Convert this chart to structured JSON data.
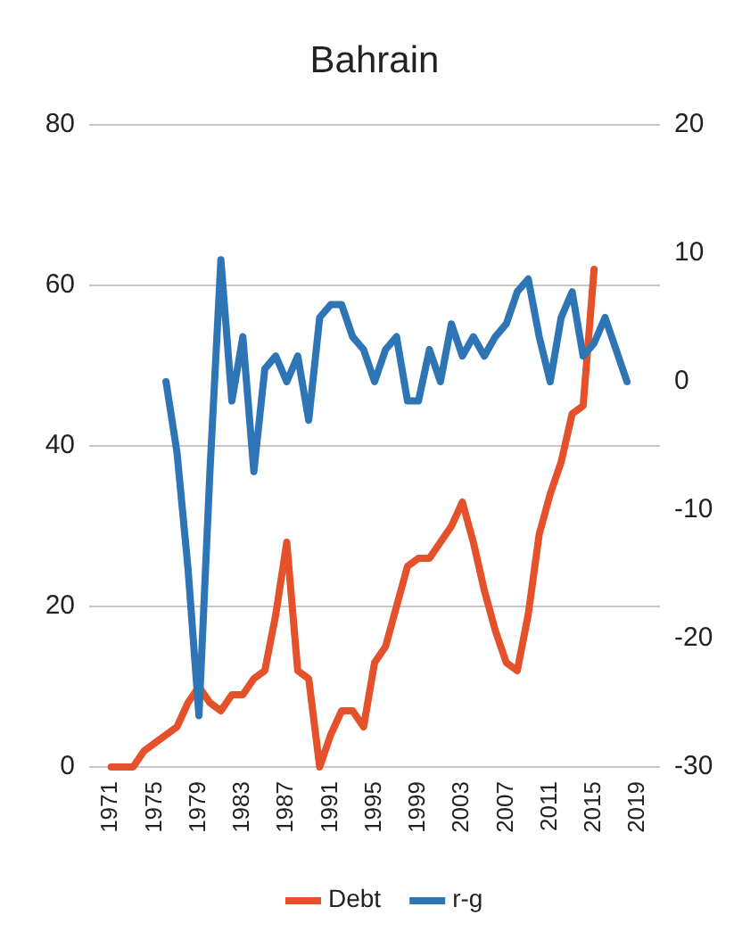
{
  "chart_data": {
    "type": "line",
    "title": "Bahrain",
    "xlim": [
      1969,
      2021
    ],
    "xticks": [
      1971,
      1975,
      1979,
      1983,
      1987,
      1991,
      1995,
      1999,
      2003,
      2007,
      2011,
      2015,
      2019
    ],
    "ylim": [
      0,
      80
    ],
    "yticks": [
      0,
      20,
      40,
      60,
      80
    ],
    "y2lim": [
      -30,
      20
    ],
    "y2ticks": [
      -30,
      -20,
      -10,
      0,
      10,
      20
    ],
    "grid": "y",
    "legend": "bottom",
    "series": [
      {
        "name": "Debt",
        "color": "#e5512b",
        "x": [
          1971,
          1972,
          1973,
          1974,
          1975,
          1976,
          1977,
          1978,
          1979,
          1980,
          1981,
          1982,
          1983,
          1984,
          1985,
          1986,
          1987,
          1988,
          1989,
          1990,
          1991,
          1992,
          1993,
          1994,
          1995,
          1996,
          1997,
          1998,
          1999,
          2000,
          2001,
          2002,
          2003,
          2004,
          2005,
          2006,
          2007,
          2008,
          2009,
          2010,
          2011,
          2012,
          2013,
          2014,
          2015
        ],
        "values": [
          0,
          0,
          0,
          2,
          3,
          4,
          5,
          8,
          10,
          8,
          7,
          9,
          9,
          11,
          12,
          19,
          28,
          12,
          11,
          0,
          4,
          7,
          7,
          5,
          13,
          15,
          20,
          25,
          26,
          26,
          28,
          30,
          33,
          28,
          22,
          17,
          13,
          12,
          19,
          29,
          34,
          38,
          44,
          45,
          62
        ]
      },
      {
        "name": "r-g",
        "color": "#2e75b6",
        "axis": "y2",
        "x": [
          1976,
          1977,
          1978,
          1979,
          1980,
          1981,
          1982,
          1983,
          1984,
          1985,
          1986,
          1987,
          1988,
          1989,
          1990,
          1991,
          1992,
          1993,
          1994,
          1995,
          1996,
          1997,
          1998,
          1999,
          2000,
          2001,
          2002,
          2003,
          2004,
          2005,
          2006,
          2007,
          2008,
          2009,
          2010,
          2011,
          2012,
          2013,
          2014,
          2015,
          2016,
          2017,
          2018
        ],
        "values": [
          0,
          -5.5,
          -14.5,
          -26,
          -7,
          9.5,
          -1.5,
          3.5,
          -7,
          1,
          2,
          0,
          2,
          -3,
          5,
          6,
          6,
          3.5,
          2.5,
          0,
          2.5,
          3.5,
          -1.5,
          -1.5,
          2.5,
          0,
          4.5,
          2,
          3.5,
          2,
          3.5,
          4.5,
          7,
          8,
          3.5,
          0,
          5,
          7,
          2,
          3,
          5,
          2.5,
          0
        ]
      }
    ]
  }
}
